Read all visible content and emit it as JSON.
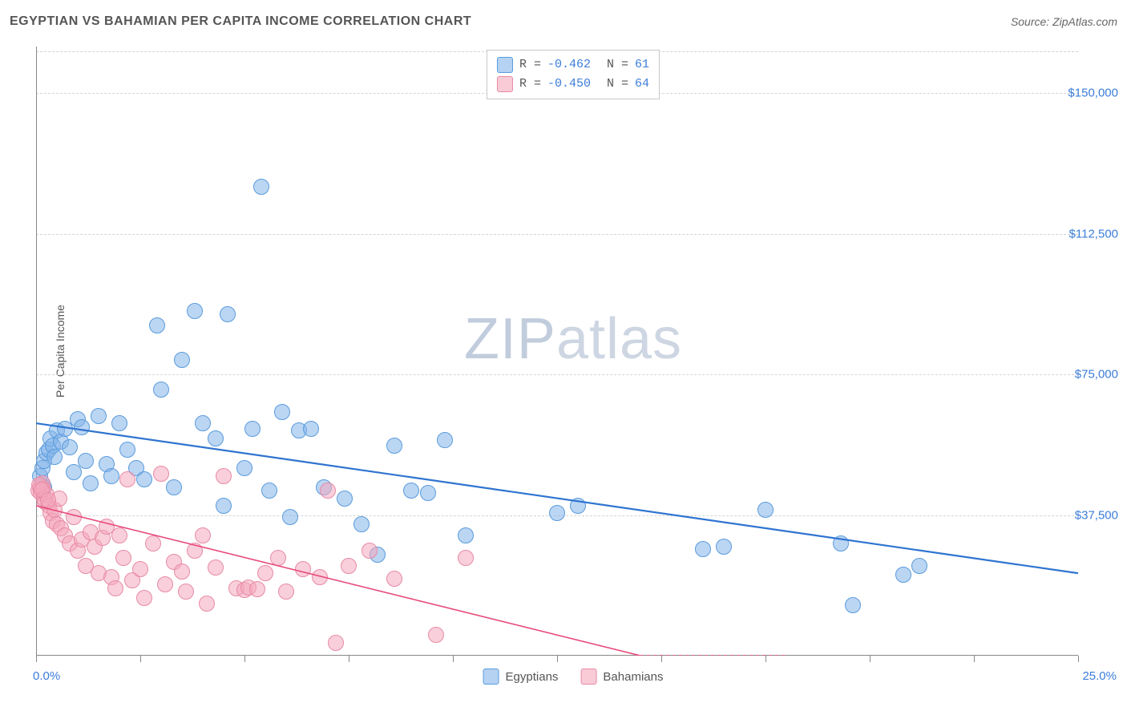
{
  "header": {
    "title": "EGYPTIAN VS BAHAMIAN PER CAPITA INCOME CORRELATION CHART",
    "source_prefix": "Source: ",
    "source_name": "ZipAtlas.com"
  },
  "watermark": {
    "zip": "ZIP",
    "atlas": "atlas"
  },
  "chart": {
    "type": "scatter",
    "background_color": "#ffffff",
    "grid_color": "#d5d5d5",
    "axis_color": "#888888",
    "tick_label_color": "#3b7dd8",
    "y_axis_label": "Per Capita Income",
    "x_axis": {
      "min": 0.0,
      "max": 25.0,
      "unit": "percent",
      "left_label": "0.0%",
      "right_label": "25.0%",
      "tick_positions_pct": [
        0,
        10,
        20,
        30,
        40,
        50,
        60,
        70,
        80,
        90,
        100
      ]
    },
    "y_axis": {
      "min": 0,
      "max": 162500,
      "unit": "usd",
      "ticks": [
        {
          "value": 37500,
          "label": "$37,500"
        },
        {
          "value": 75000,
          "label": "$75,000"
        },
        {
          "value": 112500,
          "label": "$112,500"
        },
        {
          "value": 150000,
          "label": "$150,000"
        }
      ]
    },
    "legend_top": {
      "rows": [
        {
          "swatch": "blue",
          "r_label": "R =",
          "r_val": "-0.462",
          "n_label": "N =",
          "n_val": "61"
        },
        {
          "swatch": "pink",
          "r_label": "R =",
          "r_val": "-0.450",
          "n_label": "N =",
          "n_val": "64"
        }
      ]
    },
    "legend_bottom": {
      "items": [
        {
          "swatch": "blue",
          "label": "Egyptians"
        },
        {
          "swatch": "pink",
          "label": "Bahamians"
        }
      ]
    },
    "series": [
      {
        "name": "Egyptians",
        "color_fill": "rgba(131,180,234,0.55)",
        "color_stroke": "#5a9bdc",
        "marker_radius_px": 9,
        "trend": {
          "x1_pct": 0,
          "y1_usd": 62000,
          "x2_pct": 25,
          "y2_usd": 22000,
          "color": "#2f74d0",
          "width": 2.2,
          "dash": "none"
        },
        "points": [
          {
            "x": 0.1,
            "y": 48000
          },
          {
            "x": 0.15,
            "y": 50000
          },
          {
            "x": 0.2,
            "y": 52000
          },
          {
            "x": 0.25,
            "y": 54000
          },
          {
            "x": 0.3,
            "y": 55000
          },
          {
            "x": 0.35,
            "y": 58000
          },
          {
            "x": 0.4,
            "y": 56000
          },
          {
            "x": 0.45,
            "y": 53000
          },
          {
            "x": 0.5,
            "y": 60000
          },
          {
            "x": 0.6,
            "y": 57000
          },
          {
            "x": 0.7,
            "y": 60500
          },
          {
            "x": 0.8,
            "y": 55500
          },
          {
            "x": 0.9,
            "y": 49000
          },
          {
            "x": 1.0,
            "y": 63000
          },
          {
            "x": 1.1,
            "y": 61000
          },
          {
            "x": 1.2,
            "y": 52000
          },
          {
            "x": 1.3,
            "y": 46000
          },
          {
            "x": 1.5,
            "y": 64000
          },
          {
            "x": 1.7,
            "y": 51000
          },
          {
            "x": 1.8,
            "y": 48000
          },
          {
            "x": 2.0,
            "y": 62000
          },
          {
            "x": 2.2,
            "y": 55000
          },
          {
            "x": 2.4,
            "y": 50000
          },
          {
            "x": 2.6,
            "y": 47000
          },
          {
            "x": 2.9,
            "y": 88000
          },
          {
            "x": 3.0,
            "y": 71000
          },
          {
            "x": 3.3,
            "y": 45000
          },
          {
            "x": 3.5,
            "y": 79000
          },
          {
            "x": 3.8,
            "y": 92000
          },
          {
            "x": 4.0,
            "y": 62000
          },
          {
            "x": 4.3,
            "y": 58000
          },
          {
            "x": 4.5,
            "y": 40000
          },
          {
            "x": 4.6,
            "y": 91000
          },
          {
            "x": 5.0,
            "y": 50000
          },
          {
            "x": 5.2,
            "y": 60500
          },
          {
            "x": 5.4,
            "y": 125000
          },
          {
            "x": 5.6,
            "y": 44000
          },
          {
            "x": 5.9,
            "y": 65000
          },
          {
            "x": 6.1,
            "y": 37000
          },
          {
            "x": 6.3,
            "y": 60000
          },
          {
            "x": 6.6,
            "y": 60500
          },
          {
            "x": 6.9,
            "y": 45000
          },
          {
            "x": 7.4,
            "y": 42000
          },
          {
            "x": 7.8,
            "y": 35000
          },
          {
            "x": 8.2,
            "y": 27000
          },
          {
            "x": 8.6,
            "y": 56000
          },
          {
            "x": 9.0,
            "y": 44000
          },
          {
            "x": 9.4,
            "y": 43500
          },
          {
            "x": 9.8,
            "y": 57500
          },
          {
            "x": 10.3,
            "y": 32000
          },
          {
            "x": 12.5,
            "y": 38000
          },
          {
            "x": 13.0,
            "y": 40000
          },
          {
            "x": 16.0,
            "y": 28500
          },
          {
            "x": 16.5,
            "y": 29000
          },
          {
            "x": 17.5,
            "y": 39000
          },
          {
            "x": 19.3,
            "y": 30000
          },
          {
            "x": 19.6,
            "y": 13500
          },
          {
            "x": 20.8,
            "y": 21500
          },
          {
            "x": 21.2,
            "y": 24000
          },
          {
            "x": 0.15,
            "y": 46000
          },
          {
            "x": 0.2,
            "y": 45000
          }
        ]
      },
      {
        "name": "Bahamians",
        "color_fill": "rgba(244,168,189,0.55)",
        "color_stroke": "#e78ba5",
        "marker_radius_px": 9,
        "trend": {
          "x1_pct": 0,
          "y1_usd": 40000,
          "x2_pct": 14.5,
          "y2_usd": 0,
          "color": "#e74a7a",
          "width": 1.6,
          "dash": "none",
          "dash_ext": {
            "x2_pct": 18,
            "y2_usd": -4000,
            "dash": "4,4"
          }
        },
        "points": [
          {
            "x": 0.05,
            "y": 44000
          },
          {
            "x": 0.1,
            "y": 45000
          },
          {
            "x": 0.12,
            "y": 43500
          },
          {
            "x": 0.15,
            "y": 46000
          },
          {
            "x": 0.18,
            "y": 44500
          },
          {
            "x": 0.2,
            "y": 42000
          },
          {
            "x": 0.22,
            "y": 41000
          },
          {
            "x": 0.25,
            "y": 43000
          },
          {
            "x": 0.3,
            "y": 40000
          },
          {
            "x": 0.35,
            "y": 38000
          },
          {
            "x": 0.4,
            "y": 36000
          },
          {
            "x": 0.45,
            "y": 39000
          },
          {
            "x": 0.5,
            "y": 35000
          },
          {
            "x": 0.55,
            "y": 42000
          },
          {
            "x": 0.6,
            "y": 34000
          },
          {
            "x": 0.7,
            "y": 32000
          },
          {
            "x": 0.8,
            "y": 30000
          },
          {
            "x": 0.9,
            "y": 37000
          },
          {
            "x": 1.0,
            "y": 28000
          },
          {
            "x": 1.1,
            "y": 31000
          },
          {
            "x": 1.2,
            "y": 24000
          },
          {
            "x": 1.3,
            "y": 33000
          },
          {
            "x": 1.4,
            "y": 29000
          },
          {
            "x": 1.5,
            "y": 22000
          },
          {
            "x": 1.6,
            "y": 31500
          },
          {
            "x": 1.7,
            "y": 34500
          },
          {
            "x": 1.8,
            "y": 21000
          },
          {
            "x": 1.9,
            "y": 18000
          },
          {
            "x": 2.0,
            "y": 32000
          },
          {
            "x": 2.1,
            "y": 26000
          },
          {
            "x": 2.2,
            "y": 47000
          },
          {
            "x": 2.3,
            "y": 20000
          },
          {
            "x": 2.5,
            "y": 23000
          },
          {
            "x": 2.6,
            "y": 15500
          },
          {
            "x": 2.8,
            "y": 30000
          },
          {
            "x": 3.0,
            "y": 48500
          },
          {
            "x": 3.1,
            "y": 19000
          },
          {
            "x": 3.3,
            "y": 25000
          },
          {
            "x": 3.5,
            "y": 22500
          },
          {
            "x": 3.6,
            "y": 17000
          },
          {
            "x": 3.8,
            "y": 28000
          },
          {
            "x": 4.0,
            "y": 32000
          },
          {
            "x": 4.1,
            "y": 14000
          },
          {
            "x": 4.3,
            "y": 23500
          },
          {
            "x": 4.5,
            "y": 48000
          },
          {
            "x": 4.8,
            "y": 18000
          },
          {
            "x": 5.0,
            "y": 17500
          },
          {
            "x": 5.1,
            "y": 18200
          },
          {
            "x": 5.3,
            "y": 17800
          },
          {
            "x": 5.5,
            "y": 22000
          },
          {
            "x": 5.8,
            "y": 26000
          },
          {
            "x": 6.0,
            "y": 17000
          },
          {
            "x": 6.4,
            "y": 23000
          },
          {
            "x": 6.8,
            "y": 21000
          },
          {
            "x": 7.0,
            "y": 44000
          },
          {
            "x": 7.2,
            "y": 3500
          },
          {
            "x": 7.5,
            "y": 24000
          },
          {
            "x": 8.0,
            "y": 28000
          },
          {
            "x": 8.6,
            "y": 20500
          },
          {
            "x": 9.6,
            "y": 5500
          },
          {
            "x": 10.3,
            "y": 26000
          },
          {
            "x": 0.08,
            "y": 45500
          },
          {
            "x": 0.13,
            "y": 44200
          },
          {
            "x": 0.28,
            "y": 41500
          }
        ]
      }
    ]
  }
}
